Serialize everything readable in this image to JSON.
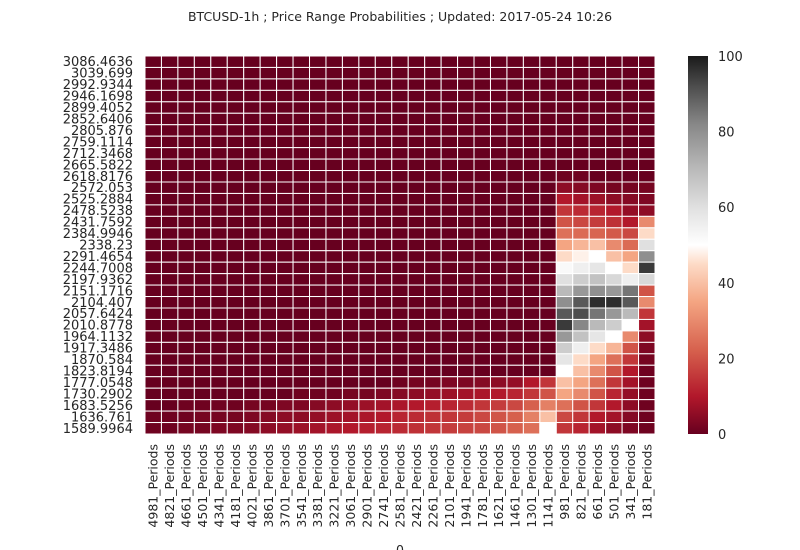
{
  "chart_data": {
    "type": "heatmap",
    "title": "BTCUSD-1h ; Price Range Probabilities ; Updated: 2017-05-24 10:26",
    "xlabel": "0",
    "ylabel": "",
    "y_labels": [
      "3086.4636",
      "3039.699",
      "2992.9344",
      "2946.1698",
      "2899.4052",
      "2852.6406",
      "2805.876",
      "2759.1114",
      "2712.3468",
      "2665.5822",
      "2618.8176",
      "2572.053",
      "2525.2884",
      "2478.5238",
      "2431.7592",
      "2384.9946",
      "2338.23",
      "2291.4654",
      "2244.7008",
      "2197.9362",
      "2151.1716",
      "2104.407",
      "2057.6424",
      "2010.8778",
      "1964.1132",
      "1917.3486",
      "1870.584",
      "1823.8194",
      "1777.0548",
      "1730.2902",
      "1683.5256",
      "1636.761",
      "1589.9964"
    ],
    "x_labels": [
      "4981_Periods",
      "4821_Periods",
      "4661_Periods",
      "4501_Periods",
      "4341_Periods",
      "4181_Periods",
      "4021_Periods",
      "3861_Periods",
      "3701_Periods",
      "3541_Periods",
      "3381_Periods",
      "3221_Periods",
      "3061_Periods",
      "2901_Periods",
      "2741_Periods",
      "2581_Periods",
      "2421_Periods",
      "2261_Periods",
      "2101_Periods",
      "1941_Periods",
      "1781_Periods",
      "1621_Periods",
      "1461_Periods",
      "1301_Periods",
      "1141_Periods",
      "981_Periods",
      "821_Periods",
      "661_Periods",
      "501_Periods",
      "341_Periods",
      "181_Periods"
    ],
    "colorbar": {
      "min": 0,
      "max": 100,
      "ticks": [
        "0",
        "20",
        "40",
        "60",
        "80",
        "100"
      ]
    },
    "colormap": "RdGy",
    "grid": true,
    "values": [
      [
        0,
        0,
        0,
        0,
        0,
        0,
        0,
        0,
        0,
        0,
        0,
        0,
        0,
        0,
        0,
        0,
        0,
        0,
        0,
        0,
        0,
        0,
        0,
        0,
        0,
        0,
        0,
        0,
        0,
        0,
        0
      ],
      [
        0,
        0,
        0,
        0,
        0,
        0,
        0,
        0,
        0,
        0,
        0,
        0,
        0,
        0,
        0,
        0,
        0,
        0,
        0,
        0,
        0,
        0,
        0,
        0,
        0,
        0,
        0,
        0,
        0,
        0,
        0
      ],
      [
        0,
        0,
        0,
        0,
        0,
        0,
        0,
        0,
        0,
        0,
        0,
        0,
        0,
        0,
        0,
        0,
        0,
        0,
        0,
        0,
        0,
        0,
        0,
        0,
        0,
        0,
        0,
        0,
        0,
        0,
        0
      ],
      [
        0,
        0,
        0,
        0,
        0,
        0,
        0,
        0,
        0,
        0,
        0,
        0,
        0,
        0,
        0,
        0,
        0,
        0,
        0,
        0,
        0,
        0,
        0,
        0,
        0,
        0,
        0,
        0,
        0,
        0,
        0
      ],
      [
        0,
        0,
        0,
        0,
        0,
        0,
        0,
        0,
        0,
        0,
        0,
        0,
        0,
        0,
        0,
        0,
        0,
        0,
        0,
        0,
        0,
        0,
        0,
        0,
        0,
        0,
        0,
        0,
        0,
        0,
        0
      ],
      [
        0,
        0,
        0,
        0,
        0,
        0,
        0,
        0,
        0,
        0,
        0,
        0,
        0,
        0,
        0,
        0,
        0,
        0,
        0,
        0,
        0,
        0,
        0,
        0,
        0,
        0,
        0,
        0,
        0,
        0,
        0
      ],
      [
        0,
        0,
        0,
        0,
        0,
        0,
        0,
        0,
        0,
        0,
        0,
        0,
        0,
        0,
        0,
        0,
        0,
        0,
        0,
        0,
        0,
        0,
        0,
        0,
        0,
        0,
        0,
        0,
        0,
        0,
        0
      ],
      [
        0,
        0,
        0,
        0,
        0,
        0,
        0,
        0,
        0,
        0,
        0,
        0,
        0,
        0,
        0,
        0,
        0,
        0,
        0,
        0,
        0,
        0,
        0,
        0,
        0,
        0,
        0,
        0,
        0,
        0,
        0
      ],
      [
        0,
        0,
        0,
        0,
        0,
        0,
        0,
        0,
        0,
        0,
        0,
        0,
        0,
        0,
        0,
        0,
        0,
        0,
        0,
        0,
        0,
        0,
        0,
        0,
        0,
        0,
        0,
        0,
        0,
        0,
        0
      ],
      [
        0,
        0,
        0,
        0,
        0,
        0,
        0,
        0,
        0,
        0,
        0,
        0,
        0,
        0,
        0,
        0,
        0,
        0,
        0,
        0,
        0,
        0,
        0,
        0,
        0,
        0,
        0,
        0,
        0,
        0,
        0
      ],
      [
        0,
        0,
        0,
        0,
        0,
        0,
        0,
        0,
        0,
        0,
        0,
        0,
        0,
        0,
        0,
        0,
        0,
        0,
        0,
        0,
        0,
        0,
        0,
        0,
        0,
        1,
        1,
        0,
        0,
        0,
        0
      ],
      [
        0,
        0,
        0,
        0,
        0,
        0,
        0,
        0,
        0,
        0,
        0,
        0,
        0,
        0,
        0,
        0,
        0,
        0,
        0,
        0,
        0,
        0,
        0,
        0,
        0,
        5,
        4,
        3,
        2,
        2,
        2
      ],
      [
        0,
        0,
        0,
        0,
        0,
        0,
        0,
        0,
        0,
        0,
        0,
        0,
        0,
        0,
        0,
        0,
        0,
        0,
        0,
        0,
        0,
        0,
        0,
        0,
        0,
        10,
        8,
        7,
        5,
        4,
        3
      ],
      [
        0,
        0,
        0,
        0,
        0,
        0,
        0,
        0,
        0,
        0,
        0,
        0,
        0,
        0,
        0,
        0,
        0,
        0,
        0,
        0,
        0,
        0,
        0,
        0,
        0,
        15,
        13,
        12,
        10,
        6,
        5
      ],
      [
        0,
        0,
        0,
        0,
        0,
        0,
        0,
        0,
        0,
        0,
        0,
        0,
        0,
        0,
        0,
        0,
        0,
        0,
        0,
        0,
        0,
        0,
        0,
        0,
        0,
        20,
        18,
        16,
        14,
        10,
        30
      ],
      [
        0,
        0,
        0,
        0,
        0,
        0,
        0,
        0,
        0,
        0,
        0,
        0,
        0,
        0,
        0,
        0,
        0,
        0,
        0,
        0,
        0,
        0,
        0,
        0,
        0,
        25,
        24,
        23,
        21,
        18,
        45
      ],
      [
        0,
        0,
        0,
        0,
        0,
        0,
        0,
        0,
        0,
        0,
        0,
        0,
        0,
        0,
        0,
        0,
        0,
        0,
        0,
        0,
        0,
        0,
        0,
        0,
        0,
        35,
        38,
        40,
        30,
        24,
        60
      ],
      [
        0,
        0,
        0,
        0,
        0,
        0,
        0,
        0,
        0,
        0,
        0,
        0,
        0,
        0,
        0,
        0,
        0,
        0,
        0,
        0,
        0,
        0,
        0,
        0,
        0,
        45,
        48,
        50,
        40,
        35,
        80
      ],
      [
        0,
        0,
        0,
        0,
        0,
        0,
        0,
        0,
        0,
        0,
        0,
        0,
        0,
        0,
        0,
        0,
        0,
        0,
        0,
        0,
        0,
        0,
        0,
        0,
        0,
        52,
        55,
        58,
        50,
        45,
        95
      ],
      [
        0,
        0,
        0,
        0,
        0,
        0,
        0,
        0,
        0,
        0,
        0,
        0,
        0,
        0,
        0,
        0,
        0,
        0,
        0,
        0,
        0,
        0,
        0,
        0,
        0,
        60,
        65,
        68,
        62,
        55,
        62
      ],
      [
        0,
        0,
        0,
        0,
        0,
        0,
        0,
        0,
        0,
        0,
        0,
        0,
        0,
        0,
        0,
        0,
        0,
        0,
        0,
        0,
        0,
        0,
        0,
        0,
        0,
        70,
        78,
        80,
        78,
        85,
        20
      ],
      [
        0,
        0,
        0,
        0,
        0,
        0,
        0,
        0,
        0,
        0,
        0,
        0,
        0,
        0,
        0,
        0,
        0,
        0,
        0,
        0,
        0,
        0,
        0,
        0,
        0,
        80,
        90,
        97,
        97,
        90,
        30
      ],
      [
        0,
        0,
        0,
        0,
        0,
        0,
        0,
        0,
        0,
        0,
        0,
        0,
        0,
        0,
        0,
        0,
        0,
        0,
        0,
        0,
        0,
        0,
        0,
        0,
        0,
        90,
        92,
        85,
        78,
        70,
        15
      ],
      [
        0,
        0,
        0,
        0,
        0,
        0,
        0,
        0,
        0,
        0,
        0,
        0,
        0,
        0,
        0,
        0,
        0,
        0,
        0,
        0,
        0,
        0,
        0,
        0,
        0,
        95,
        82,
        70,
        65,
        50,
        8
      ],
      [
        0,
        0,
        0,
        0,
        0,
        0,
        0,
        0,
        0,
        0,
        0,
        0,
        0,
        0,
        0,
        0,
        0,
        0,
        0,
        0,
        0,
        0,
        0,
        0,
        0,
        78,
        68,
        58,
        50,
        30,
        5
      ],
      [
        0,
        0,
        0,
        0,
        0,
        0,
        0,
        0,
        0,
        0,
        0,
        0,
        0,
        0,
        0,
        0,
        0,
        0,
        0,
        0,
        0,
        0,
        0,
        0,
        0,
        65,
        55,
        45,
        38,
        20,
        3
      ],
      [
        0,
        0,
        0,
        0,
        0,
        0,
        0,
        0,
        0,
        0,
        0,
        0,
        0,
        0,
        0,
        0,
        0,
        0,
        0,
        0,
        0,
        0,
        0,
        0,
        0,
        58,
        45,
        35,
        25,
        15,
        2
      ],
      [
        0,
        0,
        0,
        0,
        0,
        0,
        0,
        0,
        0,
        0,
        0,
        0,
        0,
        0,
        0,
        0,
        0,
        0,
        0,
        0,
        0,
        0,
        0,
        0,
        0,
        50,
        40,
        30,
        20,
        10,
        1
      ],
      [
        0,
        0,
        0,
        0,
        0,
        0,
        0,
        0,
        0,
        0,
        0,
        0,
        0,
        0,
        0,
        1,
        2,
        2,
        3,
        3,
        4,
        5,
        6,
        10,
        15,
        40,
        35,
        25,
        15,
        8,
        1
      ],
      [
        0,
        0,
        0,
        0,
        0,
        0,
        0,
        0,
        0,
        1,
        1,
        1,
        2,
        2,
        3,
        4,
        5,
        6,
        7,
        8,
        9,
        10,
        12,
        15,
        20,
        35,
        30,
        20,
        12,
        6,
        1
      ],
      [
        0,
        0,
        1,
        1,
        1,
        1,
        2,
        2,
        3,
        3,
        4,
        5,
        6,
        7,
        8,
        9,
        10,
        11,
        12,
        13,
        15,
        16,
        18,
        22,
        28,
        25,
        20,
        15,
        10,
        5,
        1
      ],
      [
        1,
        1,
        1,
        2,
        2,
        2,
        3,
        4,
        5,
        5,
        6,
        7,
        8,
        9,
        10,
        12,
        13,
        14,
        15,
        16,
        18,
        20,
        22,
        28,
        40,
        18,
        15,
        10,
        8,
        4,
        1
      ],
      [
        1,
        1,
        2,
        2,
        3,
        3,
        4,
        5,
        6,
        7,
        8,
        9,
        10,
        11,
        12,
        13,
        14,
        15,
        16,
        17,
        18,
        20,
        22,
        25,
        50,
        15,
        12,
        8,
        5,
        3,
        1
      ]
    ]
  }
}
